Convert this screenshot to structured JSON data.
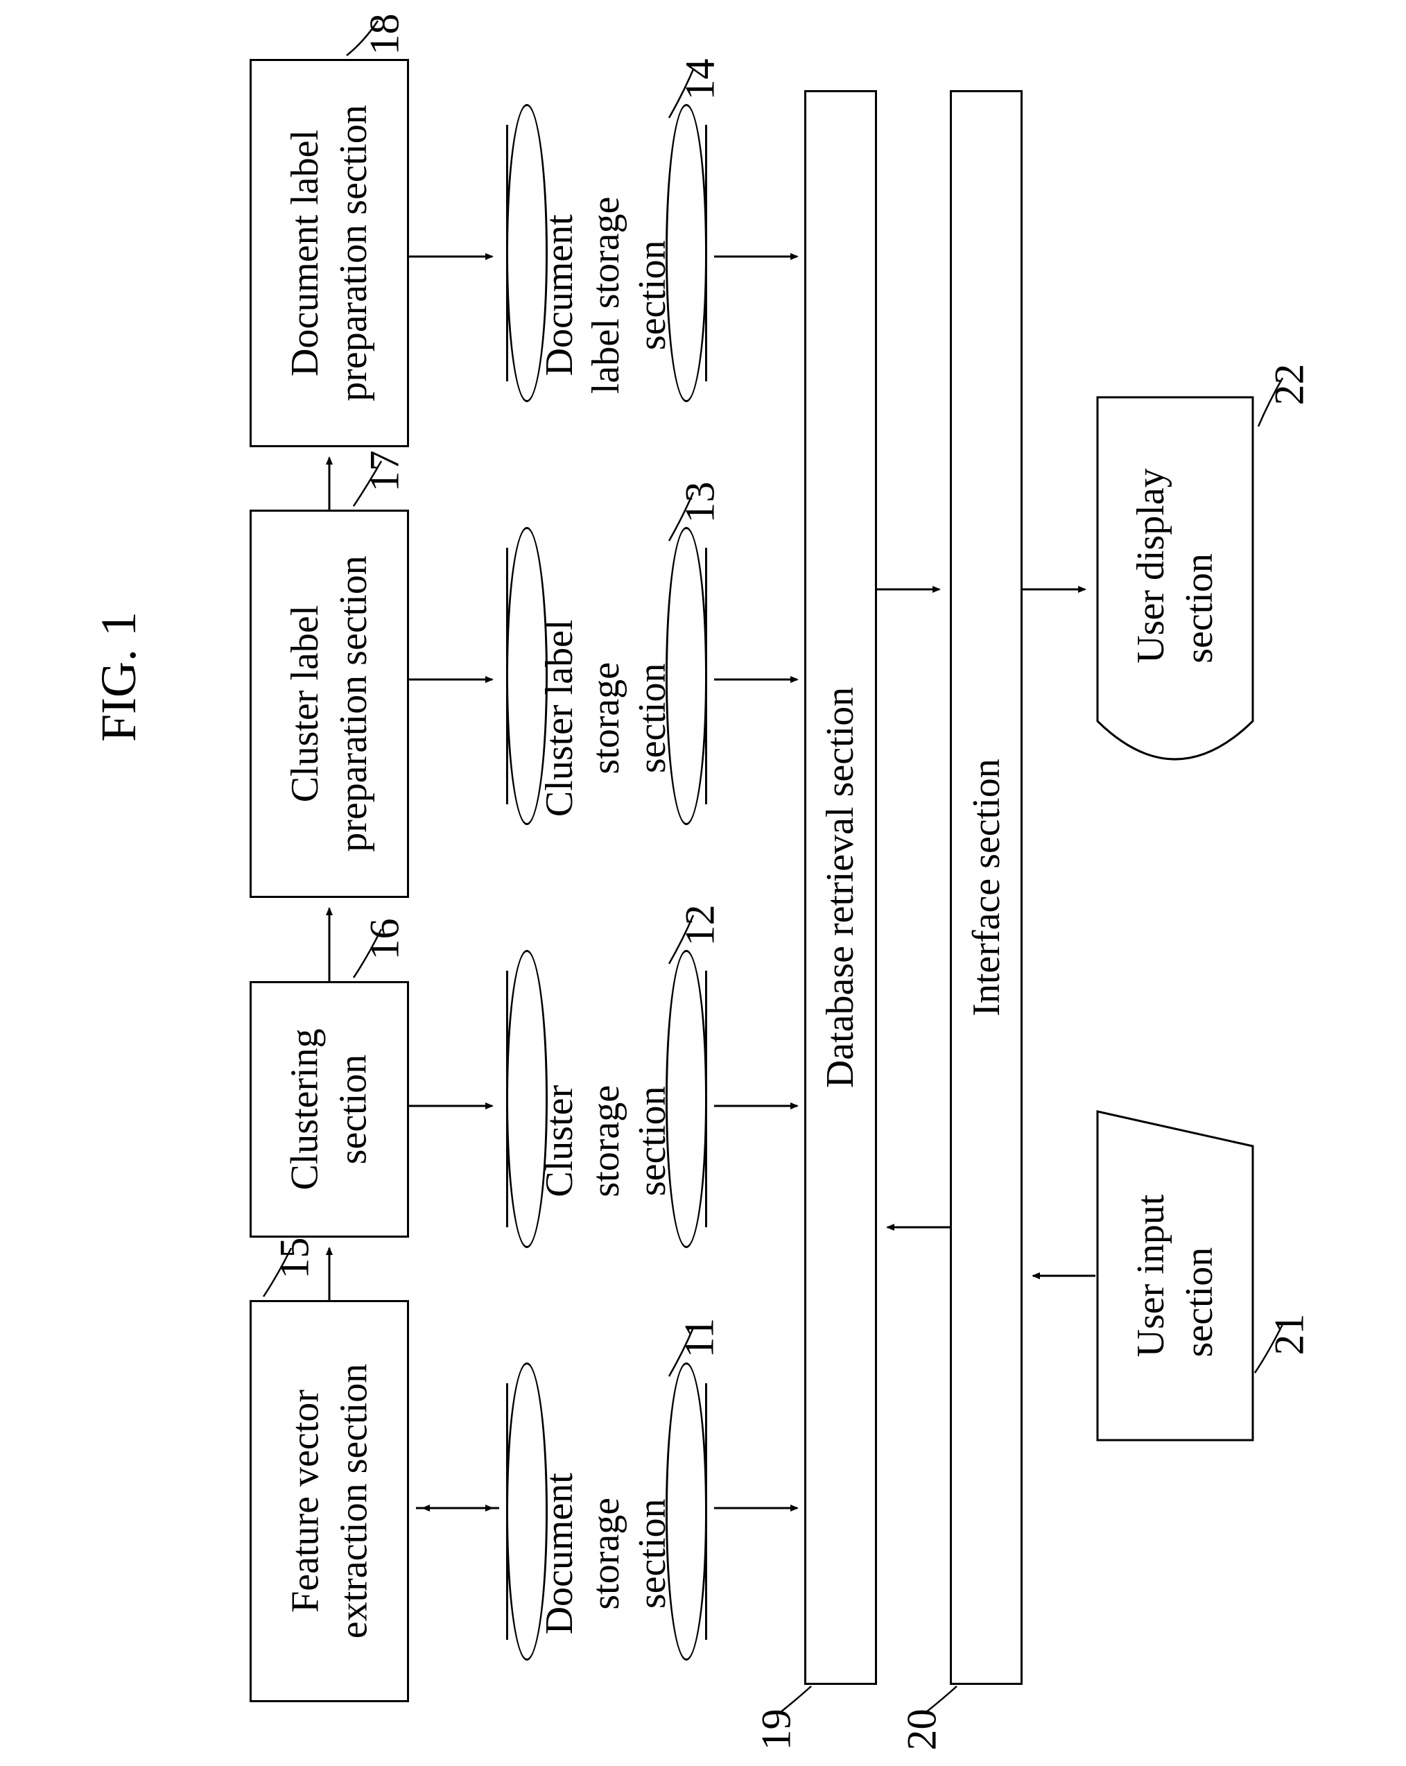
{
  "figure_title": "FIG. 1",
  "colors": {
    "stroke": "#000000",
    "background": "#ffffff"
  },
  "font": {
    "family": "Times New Roman",
    "title_size": 72,
    "label_size": 56,
    "ref_size": 60
  },
  "blocks": {
    "b15": {
      "ref": "15",
      "label": "Feature vector\nextraction section"
    },
    "b16": {
      "ref": "16",
      "label": "Clustering\nsection"
    },
    "b17": {
      "ref": "17",
      "label": "Cluster label\npreparation section"
    },
    "b18": {
      "ref": "18",
      "label": "Document label\npreparation section"
    },
    "b11": {
      "ref": "11",
      "label": "Document\nstorage\nsection"
    },
    "b12": {
      "ref": "12",
      "label": "Cluster\nstorage\nsection"
    },
    "b13": {
      "ref": "13",
      "label": "Cluster label\nstorage\nsection"
    },
    "b14": {
      "ref": "14",
      "label": "Document\nlabel storage\nsection"
    },
    "b19": {
      "ref": "19",
      "label": "Database retrieval section"
    },
    "b20": {
      "ref": "20",
      "label": "Interface section"
    },
    "b21": {
      "ref": "21",
      "label": "User input\nsection"
    },
    "b22": {
      "ref": "22",
      "label": "User display\nsection"
    }
  }
}
